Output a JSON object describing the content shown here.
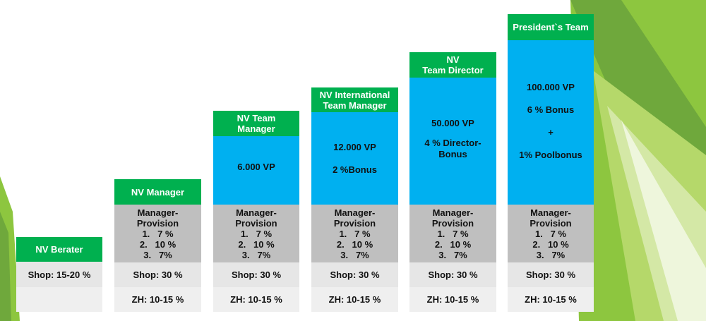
{
  "levels": [
    {
      "title": [
        "NV Berater"
      ],
      "blue": [],
      "provision": null,
      "shop": "Shop: 15-20 %",
      "zh": ""
    },
    {
      "title": [
        "NV Manager"
      ],
      "blue": [],
      "provision": {
        "label1": "Manager-",
        "label2": "Provision",
        "tiers": [
          "1.   7 %",
          "2.   10 %",
          "3.   7%"
        ]
      },
      "shop": "Shop: 30 %",
      "zh": "ZH: 10-15 %"
    },
    {
      "title": [
        "NV Team",
        "Manager"
      ],
      "blue": [
        "6.000 VP"
      ],
      "provision": {
        "label1": "Manager-",
        "label2": "Provision",
        "tiers": [
          "1.   7 %",
          "2.   10 %",
          "3.   7%"
        ]
      },
      "shop": "Shop: 30 %",
      "zh": "ZH: 10-15 %"
    },
    {
      "title": [
        "NV International",
        "Team Manager"
      ],
      "blue": [
        "12.000 VP",
        "2 %Bonus"
      ],
      "provision": {
        "label1": "Manager-",
        "label2": "Provision",
        "tiers": [
          "1.   7 %",
          "2.   10 %",
          "3.   7%"
        ]
      },
      "shop": "Shop: 30 %",
      "zh": "ZH: 10-15 %"
    },
    {
      "title": [
        "NV",
        "Team Director"
      ],
      "blue": [
        "50.000 VP",
        "4 % Director-",
        "Bonus"
      ],
      "provision": {
        "label1": "Manager-",
        "label2": "Provision",
        "tiers": [
          "1.   7 %",
          "2.   10 %",
          "3.   7%"
        ]
      },
      "shop": "Shop: 30 %",
      "zh": "ZH: 10-15 %"
    },
    {
      "title": [
        "President`s Team"
      ],
      "blue": [
        "100.000 VP",
        "6 %  Bonus",
        "+",
        "1% Poolbonus"
      ],
      "provision": {
        "label1": "Manager-",
        "label2": "Provision",
        "tiers": [
          "1.   7 %",
          "2.   10 %",
          "3.   7%"
        ]
      },
      "shop": "Shop: 30 %",
      "zh": "ZH: 10-15 %"
    }
  ],
  "colors": {
    "header_green": "#00b04f",
    "blue_fill": "#00b0f0",
    "gray_fill": "#bfbfbf",
    "background_greens": [
      "#8dc63f",
      "#a6ce39",
      "#6fa83c"
    ]
  }
}
